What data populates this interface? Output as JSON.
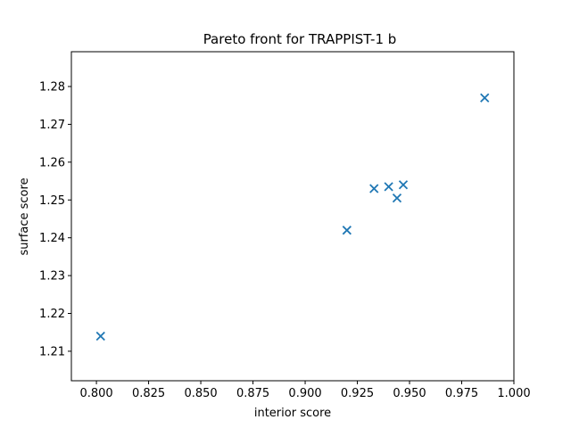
{
  "chart_data": {
    "type": "scatter",
    "title": "Pareto front for TRAPPIST-1 b",
    "xlabel": "interior score",
    "ylabel": "surface score",
    "xlim": [
      0.788,
      1.0
    ],
    "ylim": [
      1.2022,
      1.2892
    ],
    "xticks": [
      0.8,
      0.825,
      0.85,
      0.875,
      0.9,
      0.925,
      0.95,
      0.975,
      1.0
    ],
    "xtick_labels": [
      "0.800",
      "0.825",
      "0.850",
      "0.875",
      "0.900",
      "0.925",
      "0.950",
      "0.975",
      "1.000"
    ],
    "yticks": [
      1.21,
      1.22,
      1.23,
      1.24,
      1.25,
      1.26,
      1.27,
      1.28
    ],
    "ytick_labels": [
      "1.21",
      "1.22",
      "1.23",
      "1.24",
      "1.25",
      "1.26",
      "1.27",
      "1.28"
    ],
    "marker": "x",
    "color": "#1f77b4",
    "grid": false,
    "series": [
      {
        "points": [
          {
            "x": 0.802,
            "y": 1.214
          },
          {
            "x": 0.92,
            "y": 1.242
          },
          {
            "x": 0.933,
            "y": 1.253
          },
          {
            "x": 0.94,
            "y": 1.2535
          },
          {
            "x": 0.944,
            "y": 1.2505
          },
          {
            "x": 0.947,
            "y": 1.254
          },
          {
            "x": 0.986,
            "y": 1.277
          }
        ]
      }
    ]
  }
}
